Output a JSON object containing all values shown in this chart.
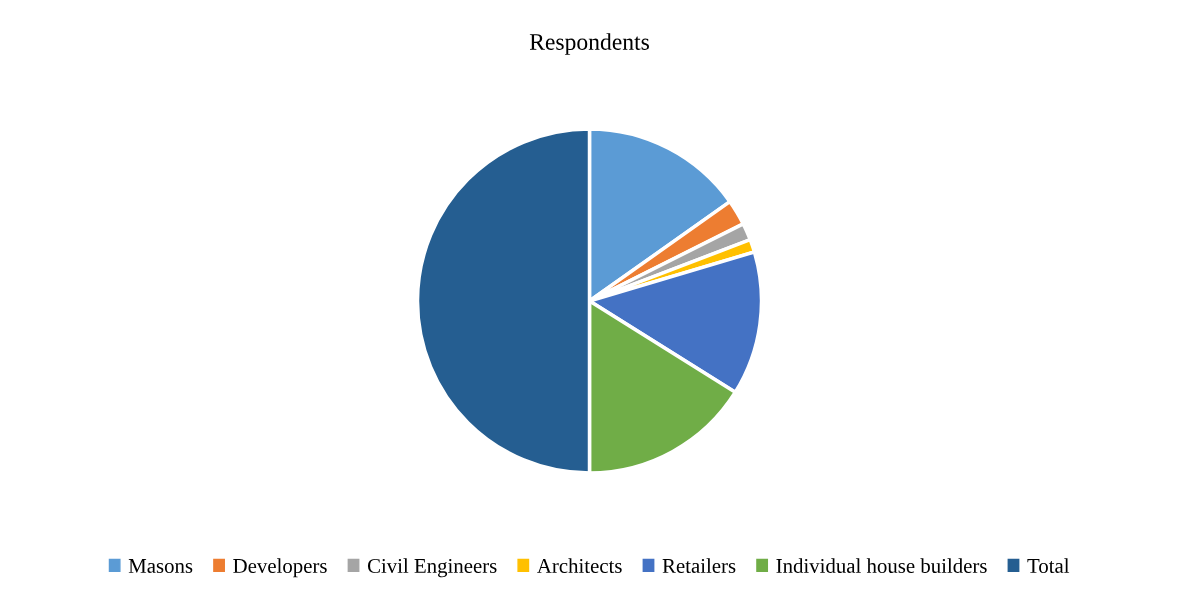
{
  "chart_data": {
    "type": "pie",
    "title": "Respondents",
    "categories": [
      "Masons",
      "Developers",
      "Civil Engineers",
      "Architects",
      "Retailers",
      "Individual house builders",
      "Total"
    ],
    "values": [
      15.2,
      2.4,
      1.6,
      1.2,
      13.5,
      16.1,
      50.0
    ],
    "colors": [
      "#5b9bd5",
      "#ed7d31",
      "#a5a5a5",
      "#ffc000",
      "#4472c4",
      "#70ad47",
      "#255e91"
    ],
    "legend": "bottom"
  }
}
